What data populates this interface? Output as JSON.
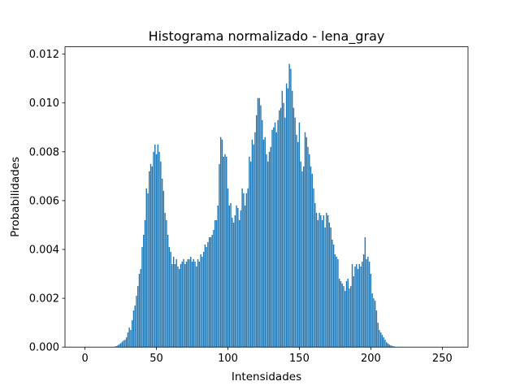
{
  "chart_data": {
    "type": "bar",
    "title": "Histograma normalizado - lena_gray",
    "xlabel": "Intensidades",
    "ylabel": "Probabilidades",
    "xlim": [
      -14,
      268
    ],
    "ylim": [
      0,
      0.0123
    ],
    "xticks": [
      0,
      50,
      100,
      150,
      200,
      250
    ],
    "xtick_labels": [
      "0",
      "50",
      "100",
      "150",
      "200",
      "250"
    ],
    "yticks": [
      0.0,
      0.002,
      0.004,
      0.006,
      0.008,
      0.01,
      0.012
    ],
    "ytick_labels": [
      "0.000",
      "0.002",
      "0.004",
      "0.006",
      "0.008",
      "0.010",
      "0.012"
    ],
    "bar_color": "#1f77b4",
    "grid": false,
    "x_start": 0,
    "values": [
      0,
      0,
      0,
      0,
      0,
      0,
      0,
      0,
      0,
      0,
      0,
      0,
      0,
      0,
      0,
      0,
      0,
      0,
      0,
      0,
      1e-05,
      2e-05,
      4e-05,
      8e-05,
      0.00012,
      0.00016,
      0.00022,
      0.00027,
      0.0003,
      0.0004,
      0.0006,
      0.0008,
      0.0007,
      0.0011,
      0.0015,
      0.0017,
      0.0021,
      0.0025,
      0.003,
      0.0032,
      0.0041,
      0.0046,
      0.0052,
      0.0065,
      0.0063,
      0.0072,
      0.0075,
      0.0074,
      0.008,
      0.0083,
      0.0079,
      0.0083,
      0.008,
      0.0076,
      0.0069,
      0.0064,
      0.0055,
      0.0052,
      0.0046,
      0.0041,
      0.0039,
      0.0034,
      0.0037,
      0.0034,
      0.0036,
      0.0033,
      0.0032,
      0.0034,
      0.0035,
      0.0036,
      0.0034,
      0.0035,
      0.0036,
      0.0036,
      0.0037,
      0.0035,
      0.0036,
      0.0035,
      0.0033,
      0.0036,
      0.0035,
      0.0038,
      0.0037,
      0.0039,
      0.0042,
      0.0041,
      0.0043,
      0.0045,
      0.0045,
      0.0046,
      0.0048,
      0.0052,
      0.0052,
      0.0058,
      0.0075,
      0.0086,
      0.0085,
      0.0078,
      0.0079,
      0.0078,
      0.0065,
      0.0058,
      0.0059,
      0.0053,
      0.0051,
      0.0054,
      0.0058,
      0.0057,
      0.0052,
      0.0056,
      0.0065,
      0.0063,
      0.0058,
      0.0063,
      0.0065,
      0.0078,
      0.0076,
      0.0085,
      0.0083,
      0.0088,
      0.0095,
      0.0102,
      0.0102,
      0.0099,
      0.0093,
      0.0085,
      0.0086,
      0.0079,
      0.0076,
      0.008,
      0.0082,
      0.0089,
      0.009,
      0.0092,
      0.0088,
      0.0093,
      0.0097,
      0.0098,
      0.0105,
      0.01,
      0.0094,
      0.0108,
      0.0106,
      0.0116,
      0.0114,
      0.0105,
      0.0098,
      0.0094,
      0.0087,
      0.0084,
      0.0092,
      0.0076,
      0.0072,
      0.0074,
      0.0088,
      0.0086,
      0.0082,
      0.0079,
      0.0074,
      0.0071,
      0.0065,
      0.0059,
      0.0055,
      0.0052,
      0.0055,
      0.0054,
      0.0052,
      0.0054,
      0.0049,
      0.0055,
      0.0054,
      0.0051,
      0.0049,
      0.0044,
      0.0042,
      0.0038,
      0.0037,
      0.0036,
      0.0028,
      0.0027,
      0.0026,
      0.0025,
      0.0023,
      0.0027,
      0.0028,
      0.0024,
      0.0025,
      0.0034,
      0.0029,
      0.0033,
      0.0034,
      0.0032,
      0.0034,
      0.0033,
      0.0035,
      0.0038,
      0.0045,
      0.0036,
      0.0037,
      0.0035,
      0.003,
      0.0022,
      0.002,
      0.0019,
      0.0015,
      0.001,
      0.0007,
      0.0006,
      0.0005,
      0.0004,
      0.0003,
      0.0002,
      0.00015,
      0.0001,
      7e-05,
      5e-05,
      3e-05,
      2e-05,
      1e-05,
      1e-05,
      0,
      0,
      0,
      0,
      0,
      0,
      0,
      0,
      0,
      0,
      0,
      0,
      0,
      0,
      0,
      0
    ]
  }
}
